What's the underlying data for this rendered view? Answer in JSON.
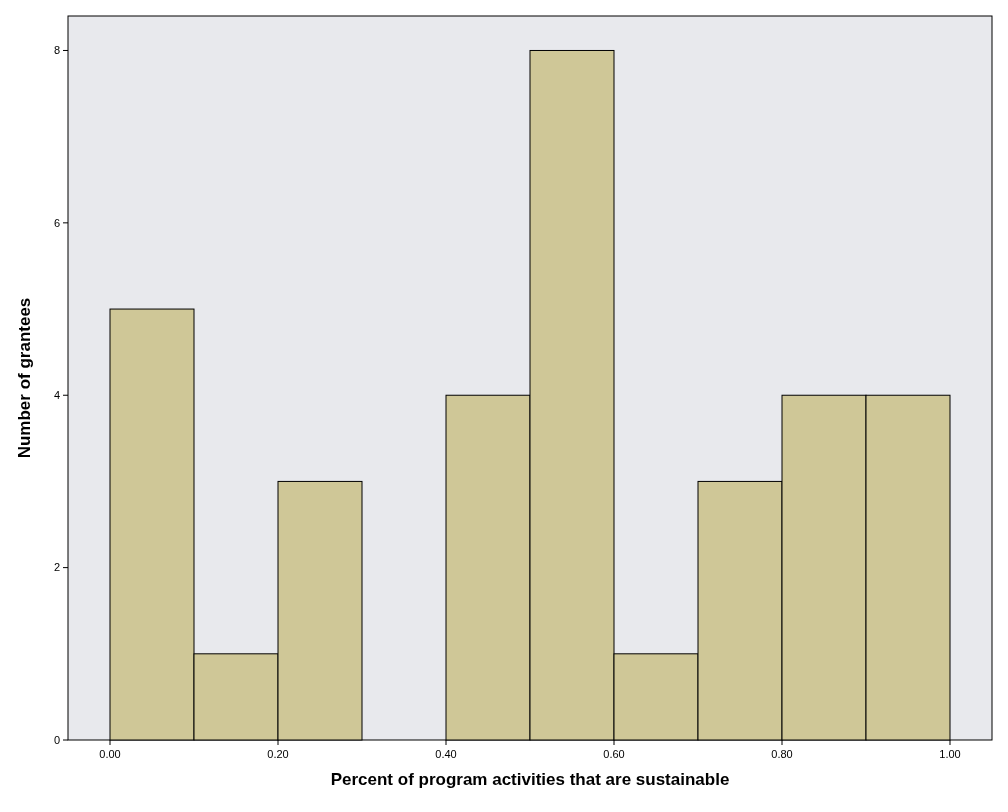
{
  "chart_data": {
    "type": "histogram",
    "xlabel": "Percent of program activities that are sustainable",
    "ylabel": "Number of grantees",
    "bins": [
      0,
      0.1,
      0.2,
      0.3,
      0.4,
      0.5,
      0.6,
      0.7,
      0.8,
      0.9,
      1.0
    ],
    "values": [
      5,
      1,
      3,
      0,
      4,
      8,
      1,
      3,
      4,
      4
    ],
    "color": "#cfc797",
    "xlim": [
      -0.05,
      1.05
    ],
    "xticks": [
      {
        "value": 0,
        "label": "0.00"
      },
      {
        "value": 0.2,
        "label": "0.20"
      },
      {
        "value": 0.4,
        "label": "0.40"
      },
      {
        "value": 0.6,
        "label": "0.60"
      },
      {
        "value": 0.8,
        "label": "0.80"
      },
      {
        "value": 1,
        "label": "1.00"
      }
    ],
    "ylim": [
      0,
      8.4
    ],
    "yticks": [
      0,
      2,
      4,
      6,
      8
    ],
    "grid": false
  }
}
